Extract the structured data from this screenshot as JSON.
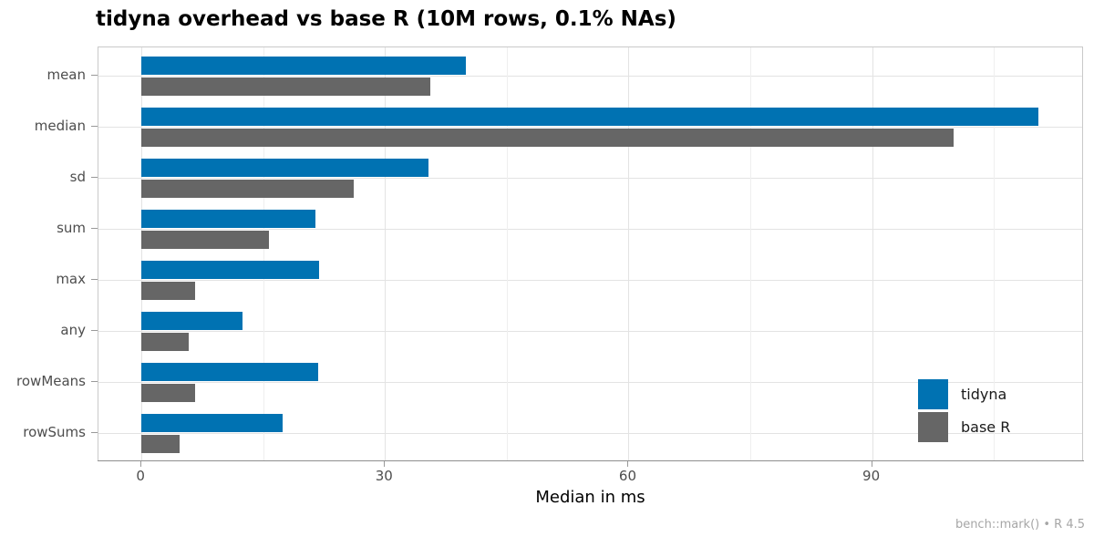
{
  "title": "tidyna overhead vs base R (10M rows, 0.1% NAs)",
  "chart_data": {
    "type": "bar",
    "orientation": "horizontal",
    "title": "tidyna overhead vs base R (10M rows, 0.1% NAs)",
    "xlabel": "Median in ms",
    "ylabel": "",
    "categories": [
      "mean",
      "median",
      "sd",
      "sum",
      "max",
      "any",
      "rowMeans",
      "rowSums"
    ],
    "series": [
      {
        "name": "tidyna",
        "color": "#0072B2",
        "values": [
          40.0,
          110.5,
          35.3,
          21.4,
          21.9,
          12.5,
          21.8,
          17.4
        ]
      },
      {
        "name": "base R",
        "color": "#666666",
        "values": [
          35.6,
          100.0,
          26.1,
          15.7,
          6.6,
          5.8,
          6.6,
          4.7
        ]
      }
    ],
    "xlim": [
      -5.3,
      116.1
    ],
    "x_major_ticks": [
      0,
      30,
      60,
      90
    ],
    "x_minor_ticks": [
      15,
      45,
      75,
      105
    ],
    "grid": "vertical major+minor, horizontal at category centers",
    "legend_position": "inside bottom-right",
    "caption": "bench::mark() • R 4.5"
  },
  "style": {
    "major_grid_color": "#e3e3e3",
    "minor_grid_color": "#efefef",
    "panel_border_color": "#c9c9c9",
    "axis_line_color": "#8f8f8f",
    "tick_color": "#999999",
    "tick_label_color": "#4d4d4d",
    "axis_title_color": "#000000",
    "caption_color": "#a6a6a6",
    "legend_text_color": "#1a1a1a",
    "series_colors": {
      "tidyna": "#0072B2",
      "base R": "#666666"
    }
  }
}
